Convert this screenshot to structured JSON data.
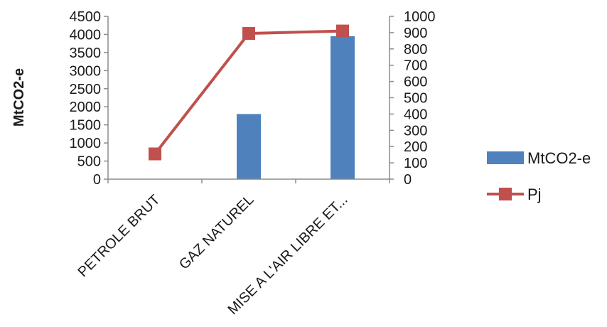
{
  "chart_data": {
    "type": "bar",
    "categories": [
      "PETROLE BRUT",
      "GAZ NATUREL",
      "MISE A L'AIR LIBRE ET..."
    ],
    "series": [
      {
        "name": "MtCO2-e",
        "kind": "bar",
        "axis": "left",
        "values": [
          0,
          1800,
          3950
        ],
        "color": "#4f81bd"
      },
      {
        "name": "Pj",
        "kind": "line",
        "axis": "right",
        "values": [
          155,
          895,
          910
        ],
        "color": "#c0504d",
        "marker": "square"
      }
    ],
    "ylabel": "MtCO2-e",
    "ylim": [
      0,
      4500
    ],
    "yticks": [
      "0",
      "500",
      "1000",
      "1500",
      "2000",
      "2500",
      "3000",
      "3500",
      "4000",
      "4500"
    ],
    "y2lim": [
      0,
      1000
    ],
    "y2ticks": [
      "0",
      "100",
      "200",
      "300",
      "400",
      "500",
      "600",
      "700",
      "800",
      "900",
      "1000"
    ],
    "grid": false,
    "legend_position": "right"
  }
}
